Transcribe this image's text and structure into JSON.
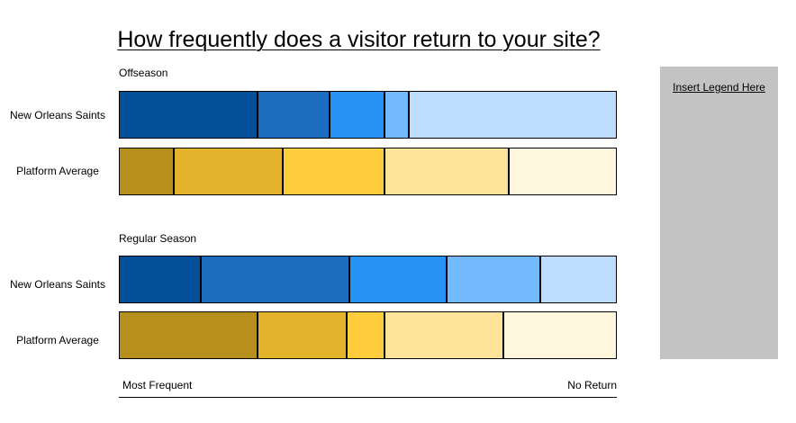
{
  "title": "How frequently does a visitor return to your site?",
  "legend_placeholder": "Insert Legend Here",
  "axis": {
    "left_label": "Most Frequent",
    "right_label": "No Return"
  },
  "colors": {
    "blue": [
      "#034f98",
      "#1c6cc0",
      "#2891f4",
      "#73b9fd",
      "#bcddfd"
    ],
    "gold": [
      "#b78f1c",
      "#e2b32b",
      "#ffcc3b",
      "#ffe399",
      "#fff6de"
    ]
  },
  "chart_data": {
    "type": "bar",
    "stacked": "100%",
    "orientation": "horizontal",
    "xlim": [
      0,
      100
    ],
    "legend": "right",
    "panels": [
      {
        "title": "Offseason",
        "rows": [
          {
            "label": "New Orleans Saints",
            "palette": "blue",
            "values": [
              28,
              14.5,
              11,
              5,
              41.5
            ]
          },
          {
            "label": "Platform Average",
            "palette": "gold",
            "values": [
              11,
              22,
              20.5,
              25,
              21.5
            ]
          }
        ]
      },
      {
        "title": "Regular Season",
        "rows": [
          {
            "label": "New Orleans Saints",
            "palette": "blue",
            "values": [
              16.5,
              30,
              19.5,
              19,
              15
            ]
          },
          {
            "label": "Platform Average",
            "palette": "gold",
            "values": [
              28,
              18,
              7.5,
              24,
              22.5
            ]
          }
        ]
      }
    ]
  }
}
